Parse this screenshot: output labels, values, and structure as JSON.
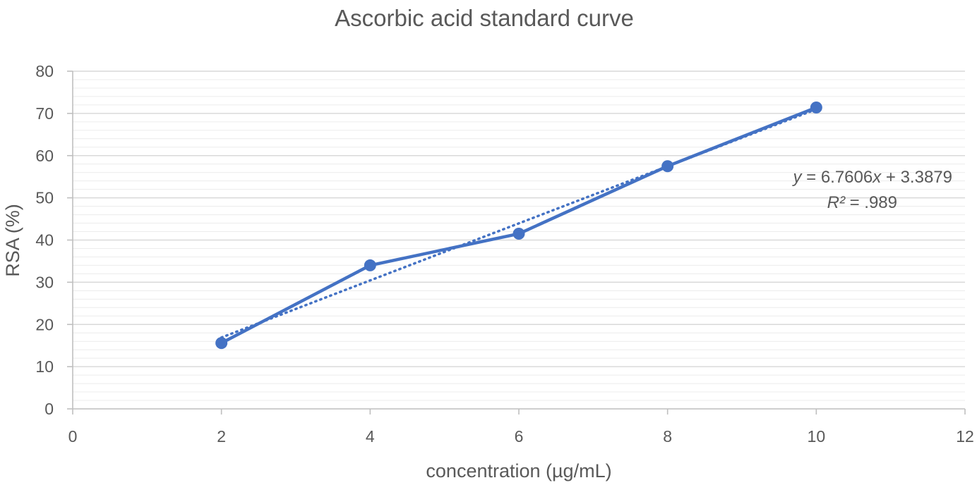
{
  "chart_data": {
    "type": "scatter",
    "title": "Ascorbic acid standard curve",
    "xlabel": "concentration (µg/mL)",
    "ylabel": "RSA (%)",
    "xlim": [
      0,
      12
    ],
    "ylim": [
      0,
      80
    ],
    "x_ticks": [
      0,
      2,
      4,
      6,
      8,
      10,
      12
    ],
    "y_ticks": [
      0,
      10,
      20,
      30,
      40,
      50,
      60,
      70,
      80
    ],
    "grid": true,
    "series": [
      {
        "x": [
          2,
          4,
          6,
          8,
          10
        ],
        "y": [
          15.6,
          34.0,
          41.5,
          57.5,
          71.4
        ],
        "style": "line-with-markers",
        "color": "#4472C4"
      }
    ],
    "trendline": {
      "type": "linear",
      "style": "dotted",
      "color": "#4472C4",
      "slope": 6.7606,
      "intercept": 3.3879,
      "x_range": [
        2,
        10
      ]
    },
    "annotations": {
      "equation_prefix": "y",
      "equation_mid": " = 6.7606",
      "equation_var": "x",
      "equation_suffix": " + 3.3879",
      "r2_prefix": "R²",
      "r2_value": " = .989"
    }
  }
}
